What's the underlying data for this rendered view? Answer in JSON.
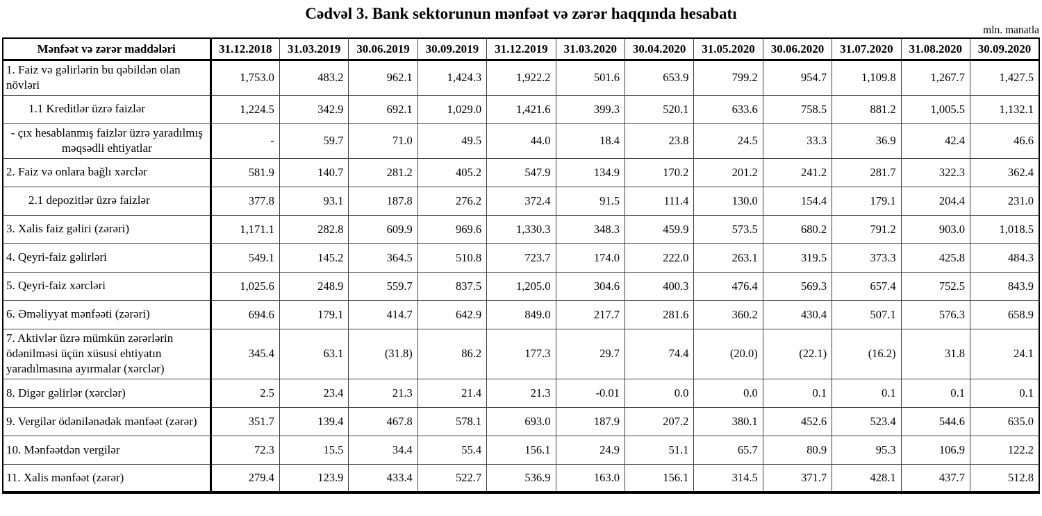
{
  "page": {
    "title": "Cədvəl 3. Bank sektorunun mənfəət və zərər haqqında hesabatı",
    "unit_note": "mln. manatla"
  },
  "table": {
    "header": {
      "label_column": "Mənfəət və zərər maddələri",
      "periods": [
        "31.12.2018",
        "31.03.2019",
        "30.06.2019",
        "30.09.2019",
        "31.12.2019",
        "31.03.2020",
        "30.04.2020",
        "31.05.2020",
        "30.06.2020",
        "31.07.2020",
        "31.08.2020",
        "30.09.2020"
      ]
    },
    "rows": [
      {
        "label": "1. Faiz və gəlirlərin bu qəbildən olan növləri",
        "indent": "none",
        "values": [
          "1,753.0",
          "483.2",
          "962.1",
          "1,424.3",
          "1,922.2",
          "501.6",
          "653.9",
          "799.2",
          "954.7",
          "1,109.8",
          "1,267.7",
          "1,427.5"
        ]
      },
      {
        "label": "1.1 Kreditlər üzrə faizlər",
        "indent": "sub",
        "values": [
          "1,224.5",
          "342.9",
          "692.1",
          "1,029.0",
          "1,421.6",
          "399.3",
          "520.1",
          "633.6",
          "758.5",
          "881.2",
          "1,005.5",
          "1,132.1"
        ]
      },
      {
        "label": "-  çıx hesablanmış faizlər üzrə yaradılmış məqsədli ehtiyatlar",
        "indent": "center",
        "values": [
          "-",
          "59.7",
          "71.0",
          "49.5",
          "44.0",
          "18.4",
          "23.8",
          "24.5",
          "33.3",
          "36.9",
          "42.4",
          "46.6"
        ]
      },
      {
        "label": "2. Faiz və onlara bağlı xərclər",
        "indent": "none",
        "values": [
          "581.9",
          "140.7",
          "281.2",
          "405.2",
          "547.9",
          "134.9",
          "170.2",
          "201.2",
          "241.2",
          "281.7",
          "322.3",
          "362.4"
        ]
      },
      {
        "label": "2.1 depozitlər üzrə faizlər",
        "indent": "sub",
        "values": [
          "377.8",
          "93.1",
          "187.8",
          "276.2",
          "372.4",
          "91.5",
          "111.4",
          "130.0",
          "154.4",
          "179.1",
          "204.4",
          "231.0"
        ]
      },
      {
        "label": "3. Xalis faiz gəliri (zərəri)",
        "indent": "none",
        "values": [
          "1,171.1",
          "282.8",
          "609.9",
          "969.6",
          "1,330.3",
          "348.3",
          "459.9",
          "573.5",
          "680.2",
          "791.2",
          "903.0",
          "1,018.5"
        ]
      },
      {
        "label": "4. Qeyri-faiz gəlirləri",
        "indent": "none",
        "values": [
          "549.1",
          "145.2",
          "364.5",
          "510.8",
          "723.7",
          "174.0",
          "222.0",
          "263.1",
          "319.5",
          "373.3",
          "425.8",
          "484.3"
        ]
      },
      {
        "label": "5. Qeyri-faiz xərcləri",
        "indent": "none",
        "values": [
          "1,025.6",
          "248.9",
          "559.7",
          "837.5",
          "1,205.0",
          "304.6",
          "400.3",
          "476.4",
          "569.3",
          "657.4",
          "752.5",
          "843.9"
        ]
      },
      {
        "label": "6. Əməliyyat mənfəəti (zərəri)",
        "indent": "none",
        "values": [
          "694.6",
          "179.1",
          "414.7",
          "642.9",
          "849.0",
          "217.7",
          "281.6",
          "360.2",
          "430.4",
          "507.1",
          "576.3",
          "658.9"
        ]
      },
      {
        "label": "7. Aktivlər üzrə mümkün zərərlərin ödənilməsi üçün xüsusi ehtiyatın yaradılmasına ayırmalar (xərclər)",
        "indent": "none",
        "values": [
          "345.4",
          "63.1",
          "(31.8)",
          "86.2",
          "177.3",
          "29.7",
          "74.4",
          "(20.0)",
          "(22.1)",
          "(16.2)",
          "31.8",
          "24.1"
        ]
      },
      {
        "label": "8. Digər gəlirlər (xərclər)",
        "indent": "none",
        "values": [
          "2.5",
          "23.4",
          "21.3",
          "21.4",
          "21.3",
          "-0.01",
          "0.0",
          "0.0",
          "0.1",
          "0.1",
          "0.1",
          "0.1"
        ]
      },
      {
        "label": "9. Vergilər ödənilənədək mənfəət (zərər)",
        "indent": "none",
        "values": [
          "351.7",
          "139.4",
          "467.8",
          "578.1",
          "693.0",
          "187.9",
          "207.2",
          "380.1",
          "452.6",
          "523.4",
          "544.6",
          "635.0"
        ]
      },
      {
        "label": "10. Mənfəətdən vergilər",
        "indent": "none",
        "values": [
          "72.3",
          "15.5",
          "34.4",
          "55.4",
          "156.1",
          "24.9",
          "51.1",
          "65.7",
          "80.9",
          "95.3",
          "106.9",
          "122.2"
        ]
      },
      {
        "label": "11. Xalis mənfəət (zərər)",
        "indent": "none",
        "values": [
          "279.4",
          "123.9",
          "433.4",
          "522.7",
          "536.9",
          "163.0",
          "156.1",
          "314.5",
          "371.7",
          "428.1",
          "437.7",
          "512.8"
        ]
      }
    ]
  }
}
